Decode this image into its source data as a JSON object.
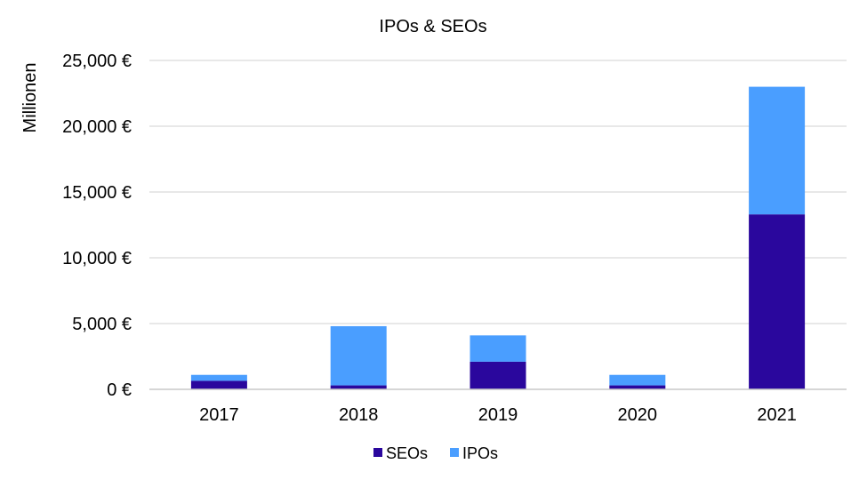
{
  "chart_data": {
    "type": "bar",
    "stacked": true,
    "title": "IPOs & SEOs",
    "xlabel": "",
    "ylabel": "Millionen",
    "categories": [
      "2017",
      "2018",
      "2019",
      "2020",
      "2021"
    ],
    "series": [
      {
        "name": "SEOs",
        "color": "#2a079d",
        "values": [
          650,
          300,
          2100,
          300,
          13300
        ]
      },
      {
        "name": "IPOs",
        "color": "#4a9eff",
        "values": [
          450,
          4500,
          2000,
          800,
          9700
        ]
      }
    ],
    "ylim": [
      0,
      25000
    ],
    "yticks": [
      0,
      5000,
      10000,
      15000,
      20000,
      25000
    ],
    "ytick_labels": [
      "0 €",
      "5,000 €",
      "10,000 €",
      "15,000 €",
      "20,000 €",
      "25,000 €"
    ],
    "grid": true,
    "legend": "bottom"
  }
}
